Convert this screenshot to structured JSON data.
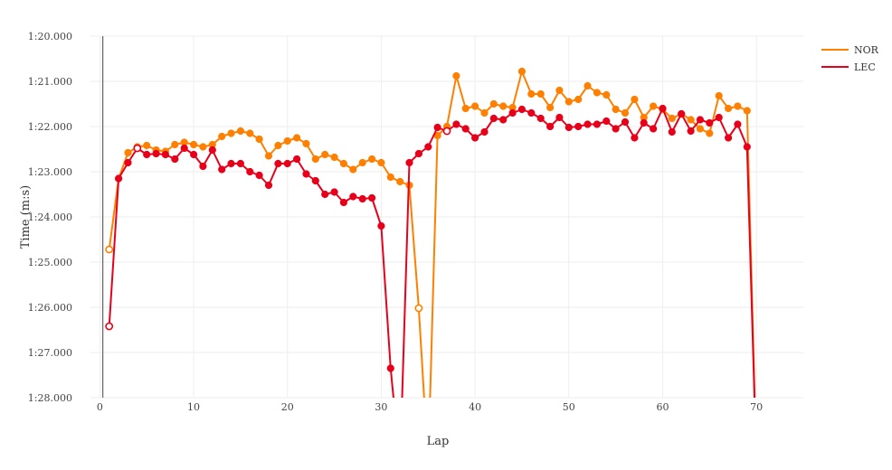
{
  "chart_data": {
    "type": "line",
    "title": "",
    "xlabel": "Lap",
    "ylabel": "Time (m:s)",
    "xlim": [
      -1,
      75
    ],
    "ylim": [
      80,
      88
    ],
    "y_reversed": true,
    "x_ticks": [
      0,
      10,
      20,
      30,
      40,
      50,
      60,
      70
    ],
    "y_ticks": [
      80,
      81,
      82,
      83,
      84,
      85,
      86,
      87,
      88
    ],
    "y_tick_labels": [
      "1:20.000",
      "1:21.000",
      "1:22.000",
      "1:23.000",
      "1:24.000",
      "1:25.000",
      "1:26.000",
      "1:27.000",
      "1:28.000"
    ],
    "grid": true,
    "legend_position": "top-right",
    "series": [
      {
        "name": "NOR",
        "color": "#ff8000",
        "hollow_laps": [
          1,
          34
        ],
        "points": [
          [
            1,
            84.72
          ],
          [
            2,
            83.15
          ],
          [
            3,
            82.58
          ],
          [
            4,
            82.45
          ],
          [
            5,
            82.42
          ],
          [
            6,
            82.52
          ],
          [
            7,
            82.55
          ],
          [
            8,
            82.4
          ],
          [
            9,
            82.35
          ],
          [
            10,
            82.4
          ],
          [
            11,
            82.45
          ],
          [
            12,
            82.4
          ],
          [
            13,
            82.22
          ],
          [
            14,
            82.15
          ],
          [
            15,
            82.1
          ],
          [
            16,
            82.15
          ],
          [
            17,
            82.28
          ],
          [
            18,
            82.65
          ],
          [
            19,
            82.42
          ],
          [
            20,
            82.32
          ],
          [
            21,
            82.25
          ],
          [
            22,
            82.38
          ],
          [
            23,
            82.72
          ],
          [
            24,
            82.62
          ],
          [
            25,
            82.68
          ],
          [
            26,
            82.82
          ],
          [
            27,
            82.95
          ],
          [
            28,
            82.8
          ],
          [
            29,
            82.72
          ],
          [
            30,
            82.8
          ],
          [
            31,
            83.12
          ],
          [
            32,
            83.22
          ],
          [
            33,
            83.3
          ],
          [
            34,
            86.02
          ],
          [
            35,
            89.5
          ],
          [
            36,
            82.2
          ],
          [
            37,
            82.0
          ],
          [
            38,
            80.88
          ],
          [
            39,
            81.6
          ],
          [
            40,
            81.55
          ],
          [
            41,
            81.7
          ],
          [
            42,
            81.5
          ],
          [
            43,
            81.55
          ],
          [
            44,
            81.58
          ],
          [
            45,
            80.78
          ],
          [
            46,
            81.28
          ],
          [
            47,
            81.28
          ],
          [
            48,
            81.58
          ],
          [
            49,
            81.2
          ],
          [
            50,
            81.45
          ],
          [
            51,
            81.4
          ],
          [
            52,
            81.1
          ],
          [
            53,
            81.25
          ],
          [
            54,
            81.3
          ],
          [
            55,
            81.62
          ],
          [
            56,
            81.7
          ],
          [
            57,
            81.4
          ],
          [
            58,
            81.8
          ],
          [
            59,
            81.55
          ],
          [
            60,
            81.62
          ],
          [
            61,
            81.82
          ],
          [
            62,
            81.72
          ],
          [
            63,
            81.85
          ],
          [
            64,
            82.05
          ],
          [
            65,
            82.15
          ],
          [
            66,
            81.32
          ],
          [
            67,
            81.6
          ],
          [
            68,
            81.55
          ],
          [
            69,
            81.65
          ],
          [
            70,
            89.5
          ]
        ]
      },
      {
        "name": "LEC",
        "color": "#e8001a",
        "hollow_laps": [
          1,
          4,
          37
        ],
        "points": [
          [
            1,
            86.42
          ],
          [
            2,
            83.15
          ],
          [
            3,
            82.8
          ],
          [
            4,
            82.48
          ],
          [
            5,
            82.62
          ],
          [
            6,
            82.6
          ],
          [
            7,
            82.62
          ],
          [
            8,
            82.72
          ],
          [
            9,
            82.48
          ],
          [
            10,
            82.62
          ],
          [
            11,
            82.88
          ],
          [
            12,
            82.52
          ],
          [
            13,
            82.95
          ],
          [
            14,
            82.82
          ],
          [
            15,
            82.82
          ],
          [
            16,
            83.0
          ],
          [
            17,
            83.08
          ],
          [
            18,
            83.3
          ],
          [
            19,
            82.82
          ],
          [
            20,
            82.82
          ],
          [
            21,
            82.72
          ],
          [
            22,
            83.05
          ],
          [
            23,
            83.2
          ],
          [
            24,
            83.5
          ],
          [
            25,
            83.45
          ],
          [
            26,
            83.68
          ],
          [
            27,
            83.55
          ],
          [
            28,
            83.6
          ],
          [
            29,
            83.58
          ],
          [
            30,
            84.2
          ],
          [
            31,
            87.35
          ],
          [
            32,
            89.5
          ],
          [
            33,
            82.8
          ],
          [
            34,
            82.6
          ],
          [
            35,
            82.45
          ],
          [
            36,
            82.02
          ],
          [
            37,
            82.1
          ],
          [
            38,
            81.95
          ],
          [
            39,
            82.05
          ],
          [
            40,
            82.25
          ],
          [
            41,
            82.12
          ],
          [
            42,
            81.82
          ],
          [
            43,
            81.85
          ],
          [
            44,
            81.7
          ],
          [
            45,
            81.62
          ],
          [
            46,
            81.7
          ],
          [
            47,
            81.82
          ],
          [
            48,
            82.0
          ],
          [
            49,
            81.8
          ],
          [
            50,
            82.02
          ],
          [
            51,
            82.0
          ],
          [
            52,
            81.95
          ],
          [
            53,
            81.95
          ],
          [
            54,
            81.88
          ],
          [
            55,
            82.05
          ],
          [
            56,
            81.9
          ],
          [
            57,
            82.25
          ],
          [
            58,
            81.92
          ],
          [
            59,
            82.05
          ],
          [
            60,
            81.6
          ],
          [
            61,
            82.12
          ],
          [
            62,
            81.72
          ],
          [
            63,
            82.1
          ],
          [
            64,
            81.85
          ],
          [
            65,
            81.92
          ],
          [
            66,
            81.8
          ],
          [
            67,
            82.25
          ],
          [
            68,
            81.95
          ],
          [
            69,
            82.45
          ],
          [
            70,
            89.5
          ]
        ]
      }
    ]
  }
}
